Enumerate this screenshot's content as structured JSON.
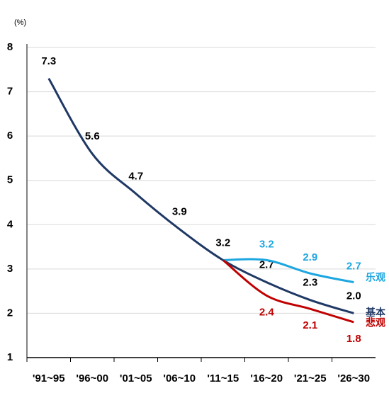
{
  "chart_data": {
    "type": "line",
    "y_label": "(%)",
    "categories": [
      "'91~95",
      "'96~00",
      "'01~05",
      "'06~10",
      "'11~15",
      "'16~20",
      "'21~25",
      "'26~30"
    ],
    "series": [
      {
        "name": "基本",
        "color": "#1f3864",
        "values": [
          7.3,
          5.6,
          4.7,
          3.9,
          3.2,
          2.7,
          2.3,
          2.0
        ],
        "value_labels": [
          "7.3",
          "5.6",
          "4.7",
          "3.9",
          "3.2",
          "2.7",
          "2.3",
          "2.0"
        ]
      },
      {
        "name": "乐观",
        "color": "#1ea6e0",
        "values": [
          null,
          null,
          null,
          null,
          3.2,
          3.2,
          2.9,
          2.7
        ]
      },
      {
        "name": "悲观",
        "color": "#c00000",
        "values": [
          null,
          null,
          null,
          null,
          3.2,
          2.4,
          2.1,
          1.8
        ]
      }
    ],
    "ylim": [
      1,
      8
    ],
    "yticks": [
      1,
      2,
      3,
      4,
      5,
      6,
      7,
      8
    ],
    "grid": true
  }
}
